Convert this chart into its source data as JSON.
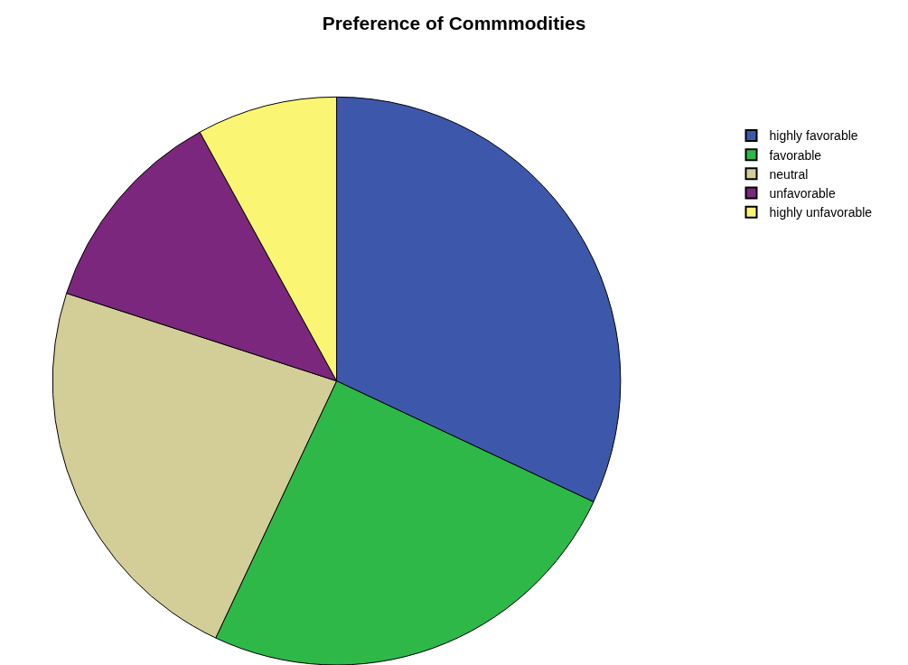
{
  "chart_data": {
    "type": "pie",
    "title": "Preference of Commmodities",
    "categories": [
      "highly favorable",
      "favorable",
      "neutral",
      "unfavorable",
      "highly unfavorable"
    ],
    "values": [
      32,
      25,
      23,
      12,
      8
    ],
    "colors": [
      "#3d58aa",
      "#2eb848",
      "#d3ce97",
      "#7b277d",
      "#fbf574"
    ],
    "legend": "top right"
  }
}
